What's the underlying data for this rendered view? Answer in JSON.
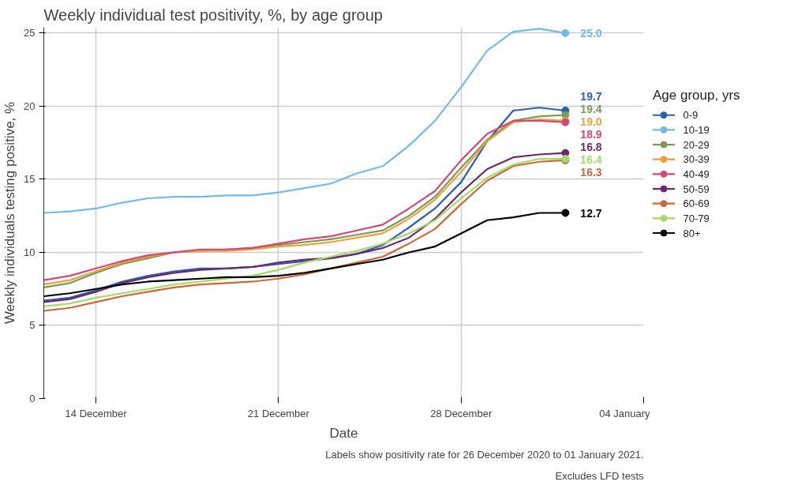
{
  "chart_data": {
    "type": "line",
    "title": "Weekly individual test positivity, %, by age group",
    "xlabel": "Date",
    "ylabel": "Weekly individuals testing positive, %",
    "legend_title": "Age group, yrs",
    "x": [
      "2020-12-12",
      "2020-12-13",
      "2020-12-14",
      "2020-12-15",
      "2020-12-16",
      "2020-12-17",
      "2020-12-18",
      "2020-12-19",
      "2020-12-20",
      "2020-12-21",
      "2020-12-22",
      "2020-12-23",
      "2020-12-24",
      "2020-12-25",
      "2020-12-26",
      "2020-12-27",
      "2020-12-28",
      "2020-12-29",
      "2020-12-30",
      "2020-12-31",
      "2021-01-01"
    ],
    "series": [
      {
        "name": "0-9",
        "color": "#2b5fad",
        "values": [
          6.7,
          6.9,
          7.4,
          8.0,
          8.4,
          8.7,
          8.9,
          8.9,
          9.0,
          9.2,
          9.4,
          9.6,
          9.9,
          10.5,
          11.7,
          13.0,
          14.8,
          17.6,
          19.7,
          19.9,
          19.7
        ],
        "value_labels": [
          null,
          null,
          null,
          null,
          null,
          null,
          null,
          null,
          null,
          null,
          null,
          null,
          null,
          null,
          null,
          null,
          null,
          null,
          null,
          null,
          "19.7"
        ]
      },
      {
        "name": "10-19",
        "color": "#74b9e7",
        "values": [
          12.7,
          12.8,
          13.0,
          13.4,
          13.7,
          13.8,
          13.8,
          13.9,
          13.9,
          14.1,
          14.4,
          14.7,
          15.4,
          15.9,
          17.3,
          19.0,
          21.3,
          23.8,
          25.1,
          25.3,
          25.0
        ],
        "value_labels": [
          null,
          null,
          null,
          null,
          null,
          null,
          null,
          null,
          null,
          null,
          null,
          null,
          null,
          null,
          null,
          null,
          null,
          null,
          null,
          null,
          "25.0"
        ]
      },
      {
        "name": "20-29",
        "color": "#7d9a55",
        "values": [
          7.6,
          7.9,
          8.6,
          9.2,
          9.6,
          10.0,
          10.1,
          10.2,
          10.3,
          10.5,
          10.7,
          10.9,
          11.2,
          11.5,
          12.5,
          13.8,
          15.8,
          17.7,
          19.0,
          19.3,
          19.4
        ],
        "value_labels": [
          null,
          null,
          null,
          null,
          null,
          null,
          null,
          null,
          null,
          null,
          null,
          null,
          null,
          null,
          null,
          null,
          null,
          null,
          null,
          null,
          "19.4"
        ]
      },
      {
        "name": "30-39",
        "color": "#e8a33c",
        "values": [
          7.8,
          8.1,
          8.7,
          9.3,
          9.7,
          10.0,
          10.1,
          10.1,
          10.2,
          10.4,
          10.5,
          10.7,
          11.0,
          11.3,
          12.3,
          13.6,
          15.5,
          17.6,
          18.9,
          19.1,
          19.0
        ],
        "value_labels": [
          null,
          null,
          null,
          null,
          null,
          null,
          null,
          null,
          null,
          null,
          null,
          null,
          null,
          null,
          null,
          null,
          null,
          null,
          null,
          null,
          "19.0"
        ]
      },
      {
        "name": "40-49",
        "color": "#d4477b",
        "values": [
          8.1,
          8.4,
          8.9,
          9.4,
          9.8,
          10.0,
          10.2,
          10.2,
          10.3,
          10.6,
          10.9,
          11.1,
          11.5,
          11.9,
          13.0,
          14.2,
          16.3,
          18.1,
          19.0,
          19.0,
          18.9
        ],
        "value_labels": [
          null,
          null,
          null,
          null,
          null,
          null,
          null,
          null,
          null,
          null,
          null,
          null,
          null,
          null,
          null,
          null,
          null,
          null,
          null,
          null,
          "18.9"
        ]
      },
      {
        "name": "50-59",
        "color": "#6b2a6b",
        "values": [
          6.6,
          6.8,
          7.3,
          7.9,
          8.3,
          8.6,
          8.8,
          8.9,
          9.0,
          9.3,
          9.5,
          9.6,
          9.9,
          10.3,
          11.0,
          12.3,
          14.1,
          15.7,
          16.5,
          16.7,
          16.8
        ],
        "value_labels": [
          null,
          null,
          null,
          null,
          null,
          null,
          null,
          null,
          null,
          null,
          null,
          null,
          null,
          null,
          null,
          null,
          null,
          null,
          null,
          null,
          "16.8"
        ]
      },
      {
        "name": "60-69",
        "color": "#c8693a",
        "values": [
          6.0,
          6.2,
          6.6,
          7.0,
          7.3,
          7.6,
          7.8,
          7.9,
          8.0,
          8.2,
          8.5,
          8.9,
          9.3,
          9.7,
          10.6,
          11.6,
          13.3,
          14.9,
          15.9,
          16.2,
          16.3
        ],
        "value_labels": [
          null,
          null,
          null,
          null,
          null,
          null,
          null,
          null,
          null,
          null,
          null,
          null,
          null,
          null,
          null,
          null,
          null,
          null,
          null,
          null,
          "16.3"
        ]
      },
      {
        "name": "70-79",
        "color": "#a6d96a",
        "values": [
          6.3,
          6.5,
          6.9,
          7.2,
          7.5,
          7.8,
          8.0,
          8.2,
          8.4,
          8.8,
          9.3,
          9.7,
          10.1,
          10.6,
          11.3,
          12.2,
          13.7,
          15.1,
          16.0,
          16.4,
          16.4
        ],
        "value_labels": [
          null,
          null,
          null,
          null,
          null,
          null,
          null,
          null,
          null,
          null,
          null,
          null,
          null,
          null,
          null,
          null,
          null,
          null,
          null,
          null,
          "16.4"
        ]
      },
      {
        "name": "80+",
        "color": "#000000",
        "values": [
          7.0,
          7.2,
          7.5,
          7.8,
          8.0,
          8.1,
          8.2,
          8.3,
          8.3,
          8.4,
          8.6,
          8.9,
          9.2,
          9.5,
          10.0,
          10.4,
          11.3,
          12.2,
          12.4,
          12.7,
          12.7
        ],
        "value_labels": [
          null,
          null,
          null,
          null,
          null,
          null,
          null,
          null,
          null,
          null,
          null,
          null,
          null,
          null,
          null,
          null,
          null,
          null,
          null,
          null,
          "12.7"
        ]
      }
    ],
    "xlim": [
      "2020-12-12",
      "2021-01-04"
    ],
    "xticks": [
      {
        "value": "2020-12-14",
        "label": "14 December"
      },
      {
        "value": "2020-12-21",
        "label": "21 December"
      },
      {
        "value": "2020-12-28",
        "label": "28 December"
      },
      {
        "value": "2021-01-04",
        "label": "04 January"
      }
    ],
    "ylim": [
      0,
      25.4
    ],
    "yticks": [
      0,
      5,
      10,
      15,
      20,
      25
    ],
    "grid": true,
    "legend": "right",
    "line_style": "solid",
    "annotations": [
      "Labels show positivity rate for 26 December 2020 to 01 January 2021.",
      "Excludes LFD tests"
    ]
  }
}
